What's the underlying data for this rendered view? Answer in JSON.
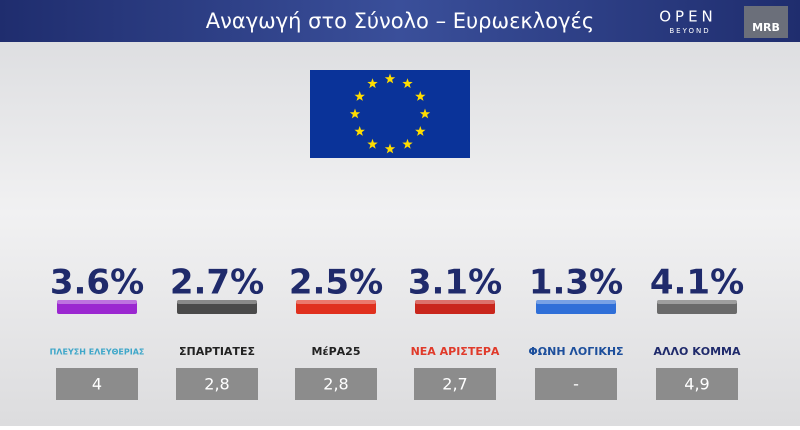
{
  "header": {
    "title": "Αναγωγή στο Σύνολο – Ευρωεκλογές",
    "logo_main": "OPEN",
    "logo_sub": "BEYOND",
    "logo_mrb": "MRB"
  },
  "parties": [
    {
      "value": "3.6%",
      "color": "#9b27d0",
      "logo": "ΠΛΕΥΣΗ ΕΛΕΥΘΕΡΙΑΣ",
      "logo_color": "#3fa7c9",
      "previous": "4"
    },
    {
      "value": "2.7%",
      "color": "#4a4a4a",
      "logo": "ΣΠΑΡΤΙΑΤΕΣ",
      "logo_color": "#222222",
      "previous": "2,8"
    },
    {
      "value": "2.5%",
      "color": "#e0301e",
      "logo": "ΜέΡΑ25",
      "logo_color": "#222222",
      "previous": "2,8"
    },
    {
      "value": "3.1%",
      "color": "#c9261c",
      "logo": "ΝΕΑ ΑΡΙΣΤΕΡΑ",
      "logo_color": "#e03a2a",
      "previous": "2,7"
    },
    {
      "value": "1.3%",
      "color": "#2f6fd8",
      "logo": "ΦΩΝΗ ΛΟΓΙΚΗΣ",
      "logo_color": "#1d4f9c",
      "previous": "-"
    },
    {
      "value": "4.1%",
      "color": "#6a6a6a",
      "logo": "ΑΛΛΟ ΚΟΜΜΑ",
      "logo_color": "#1f2a6b",
      "previous": "4,9"
    }
  ]
}
